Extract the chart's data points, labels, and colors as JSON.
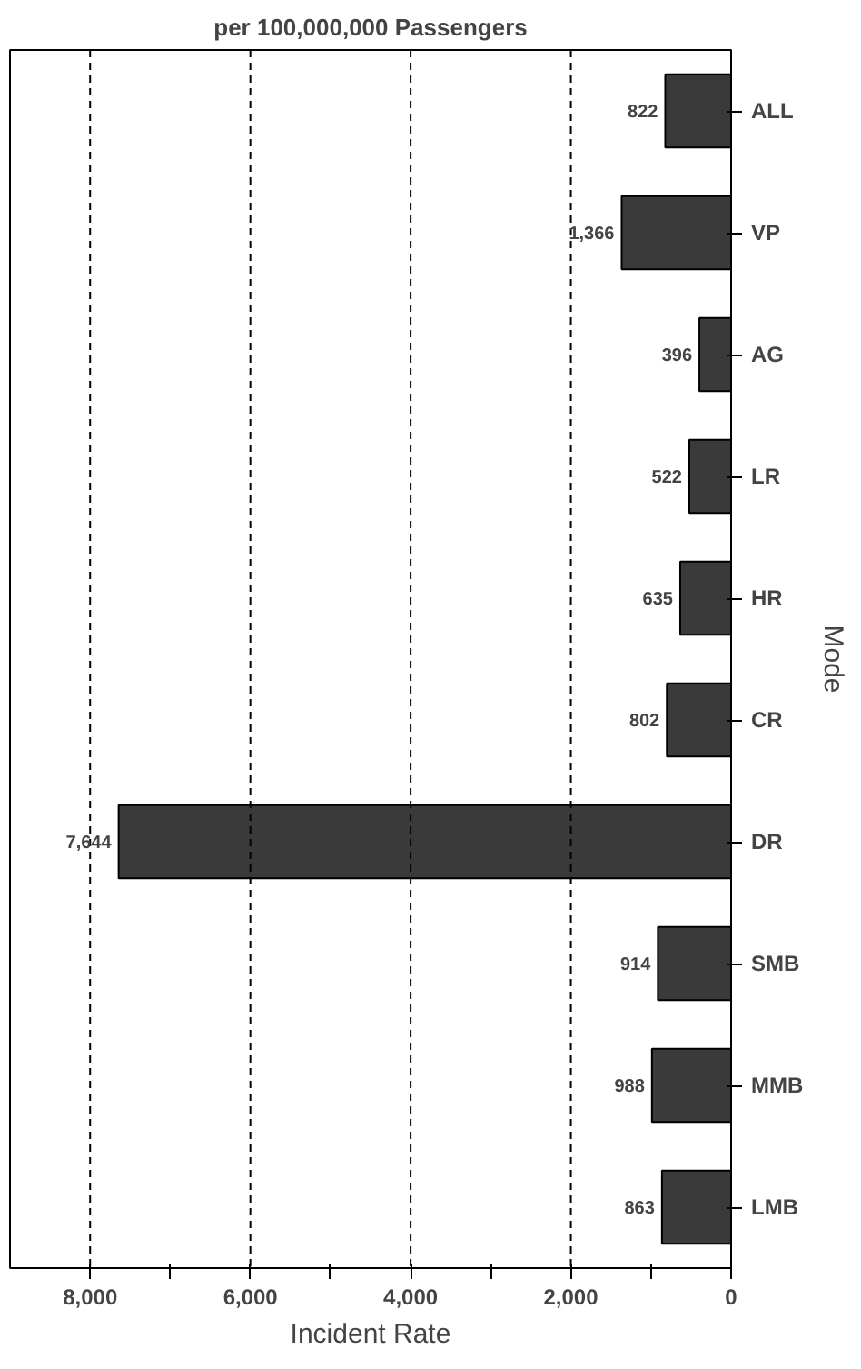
{
  "chart_data": {
    "type": "bar",
    "orientation": "horizontal",
    "title": "per 100,000,000 Passengers",
    "xlabel": "Incident Rate",
    "ylabel": "Mode",
    "categories": [
      "ALL",
      "VP",
      "AG",
      "LR",
      "HR",
      "CR",
      "DR",
      "SMB",
      "MMB",
      "LMB"
    ],
    "values": [
      822,
      1366,
      396,
      522,
      635,
      802,
      7644,
      914,
      988,
      863
    ],
    "value_labels": [
      "822",
      "1,366",
      "396",
      "522",
      "635",
      "802",
      "7,644",
      "914",
      "988",
      "863"
    ],
    "color": "#3a3a3a",
    "xlim": [
      9000,
      0
    ],
    "xticks": [
      {
        "value": 8000,
        "label": "8,000"
      },
      {
        "value": 7000,
        "label": null
      },
      {
        "value": 6000,
        "label": "6,000"
      },
      {
        "value": 5000,
        "label": null
      },
      {
        "value": 4000,
        "label": "4,000"
      },
      {
        "value": 3000,
        "label": null
      },
      {
        "value": 2000,
        "label": "2,000"
      },
      {
        "value": 1000,
        "label": null
      },
      0
    ],
    "grid": "x"
  }
}
